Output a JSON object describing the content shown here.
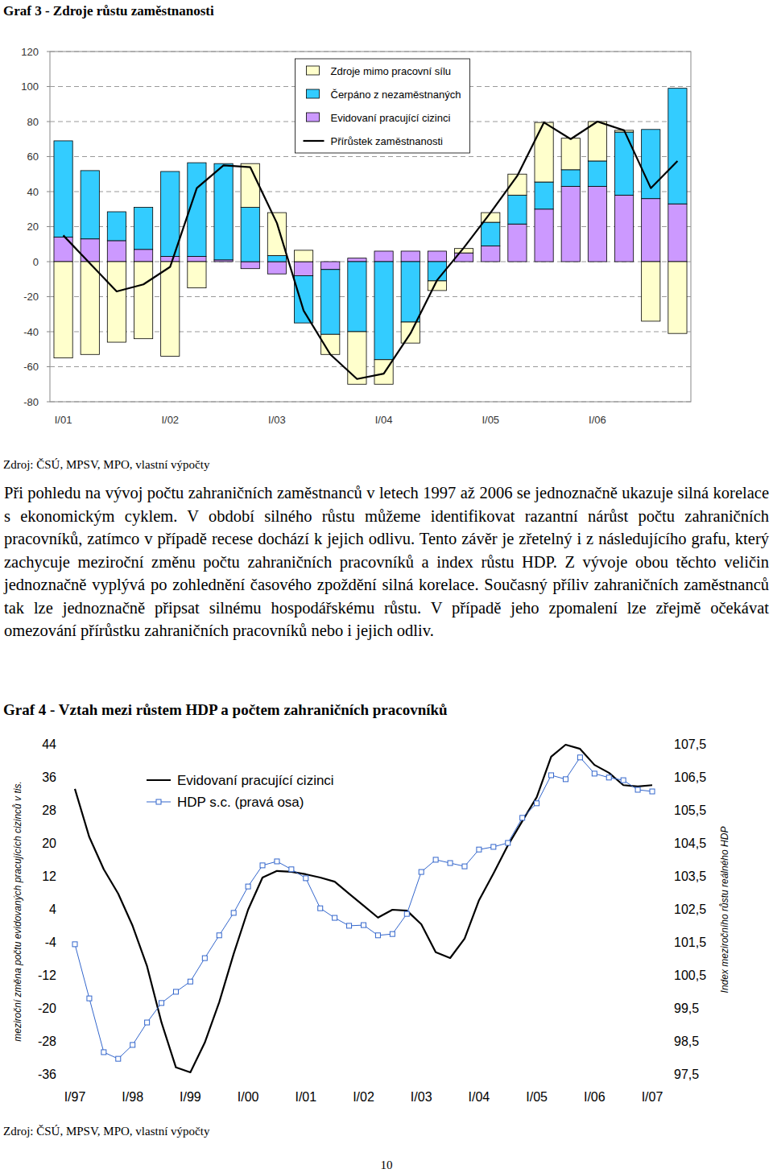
{
  "chart_data": [
    {
      "type": "bar",
      "stacked": true,
      "title": "Graf 3 - Zdroje růstu zaměstnanosti",
      "categories": [
        "I/01",
        null,
        null,
        null,
        "I/02",
        null,
        null,
        null,
        "I/03",
        null,
        null,
        null,
        "I/04",
        null,
        null,
        null,
        "I/05",
        null,
        null,
        null,
        "I/06",
        null,
        null,
        null
      ],
      "series": [
        {
          "name": "Evidovaní pracující cizinci",
          "color": "#CC99FF",
          "values": [
            14,
            13,
            12,
            7,
            3,
            3,
            1,
            -4,
            -7,
            -8,
            -4.5,
            2,
            6,
            6,
            6,
            5,
            9,
            21.5,
            30,
            43,
            43,
            38,
            36,
            33
          ]
        },
        {
          "name": "Čerpáno z nezaměstnaných",
          "color": "#33CCFF",
          "values": [
            55,
            39,
            16.5,
            24,
            48.5,
            53.5,
            55,
            31,
            3.5,
            -27,
            -37,
            -40,
            -56,
            -34.5,
            -11,
            0,
            13.5,
            16.5,
            15.5,
            9.5,
            14.5,
            36,
            39.5,
            66
          ]
        },
        {
          "name": "Zdroje mimo pracovní sílu",
          "color": "#FFFFCC",
          "values": [
            -55,
            -53,
            -46,
            -44,
            -54,
            -15,
            0,
            25,
            24.5,
            6.5,
            -11.5,
            -30,
            -14,
            -12,
            -5.5,
            2.5,
            5.5,
            12,
            34,
            18,
            22.5,
            1,
            -34,
            -41
          ]
        },
        {
          "name": "Přírůstek zaměstnanosti",
          "type": "line",
          "color": "#000000",
          "values": [
            15,
            -1,
            -17,
            -13,
            -3,
            42,
            55,
            54,
            22,
            -28,
            -53,
            -67,
            -64,
            -41,
            -10.5,
            8,
            28,
            49,
            79.5,
            70,
            80,
            75,
            42,
            57.5
          ]
        }
      ],
      "ylim": [
        -80,
        120
      ],
      "yticks": [
        -80,
        -60,
        -40,
        -20,
        0,
        20,
        40,
        60,
        80,
        100,
        120
      ],
      "grid": true,
      "legend": "top"
    },
    {
      "type": "line",
      "title": "Graf 4 - Vztah mezi růstem HDP a počtem zahraničních pracovníků",
      "y_label": "meziroční změna počtu evidovaných pracujících cizinců v tis.",
      "y2_label": "Index meziročního růstu reálného HDP",
      "categories": [
        "I/97",
        null,
        null,
        null,
        "I/98",
        null,
        null,
        null,
        "I/99",
        null,
        null,
        null,
        "I/00",
        null,
        null,
        null,
        "I/01",
        null,
        null,
        null,
        "I/02",
        null,
        null,
        null,
        "I/03",
        null,
        null,
        null,
        "I/04",
        null,
        null,
        null,
        "I/05",
        null,
        null,
        null,
        "I/06",
        null,
        null,
        null,
        "I/07"
      ],
      "series": [
        {
          "name": "Evidovaní pracující cizinci",
          "color": "#000000",
          "values": [
            33.1,
            21.4,
            13.6,
            7.7,
            -0.1,
            -9.9,
            -23.5,
            -34.4,
            -35.6,
            -28.4,
            -18.6,
            -6.9,
            3.8,
            11.6,
            13.2,
            13.0,
            12.4,
            11.6,
            10.6,
            7.7,
            4.8,
            1.9,
            3.8,
            3.6,
            0.3,
            -6.5,
            -7.9,
            -3.2,
            6.1,
            12.6,
            19.4,
            25.3,
            31.1,
            40.9,
            43.8,
            42.8,
            38.9,
            37.0,
            34.0,
            33.7,
            34.0
          ]
        },
        {
          "name": "HDP s.c. (pravá osa)",
          "axis": "y2",
          "color": "#3366CC",
          "marker": "square",
          "values": [
            101.43,
            99.79,
            98.16,
            97.96,
            98.38,
            99.06,
            99.65,
            99.99,
            100.3,
            101.01,
            101.7,
            102.38,
            103.18,
            103.82,
            103.94,
            103.7,
            103.43,
            102.52,
            102.23,
            101.99,
            102.01,
            101.7,
            101.74,
            102.35,
            103.62,
            103.99,
            103.89,
            103.79,
            104.3,
            104.38,
            104.5,
            105.26,
            105.7,
            106.55,
            106.43,
            107.09,
            106.6,
            106.48,
            106.4,
            106.11,
            106.06
          ]
        }
      ],
      "ylim": [
        -36,
        44
      ],
      "yticks": [
        -36,
        -28,
        -20,
        -12,
        -4,
        4,
        12,
        20,
        28,
        36,
        44
      ],
      "y2lim": [
        97.5,
        107.5
      ],
      "y2ticks": [
        {
          "value": 97.5,
          "label": "97,5"
        },
        {
          "value": 98.5,
          "label": "98,5"
        },
        {
          "value": 99.5,
          "label": "99,5"
        },
        {
          "value": 100.5,
          "label": "100,5"
        },
        {
          "value": 101.5,
          "label": "101,5"
        },
        {
          "value": 102.5,
          "label": "102,5"
        },
        {
          "value": 103.5,
          "label": "103,5"
        },
        {
          "value": 104.5,
          "label": "104,5"
        },
        {
          "value": 105.5,
          "label": "105,5"
        },
        {
          "value": 106.5,
          "label": "106,5"
        },
        {
          "value": 107.5,
          "label": "107,5"
        }
      ],
      "grid": false,
      "legend": "top-left"
    }
  ],
  "document": {
    "paragraph": "Při pohledu na vývoj počtu zahraničních zaměstnanců v letech 1997 až 2006 se jednoznačně ukazuje silná korelace s ekonomickým cyklem. V období silného růstu můžeme identifikovat razantní nárůst počtu zahraničních pracovníků, zatímco v případě recese dochází k jejich odlivu. Tento závěr je zřetelný i z následujícího grafu, který zachycuje meziroční změnu počtu zahraničních pracovníků a index růstu HDP. Z vývoje obou těchto veličin jednoznačně vyplývá po zohlednění časového zpoždění silná korelace. Současný příliv zahraničních zaměstnanců tak lze jednoznačně připsat silnému hospodářskému růstu. V případě jeho zpomalení lze zřejmě očekávat omezování přírůstku zahraničních pracovníků nebo i jejich odliv.",
    "sources": [
      "Zdroj: ČSÚ, MPSV, MPO, vlastní výpočty",
      "Zdroj: ČSÚ, MPSV, MPO, vlastní výpočty"
    ],
    "page_number": "10"
  }
}
